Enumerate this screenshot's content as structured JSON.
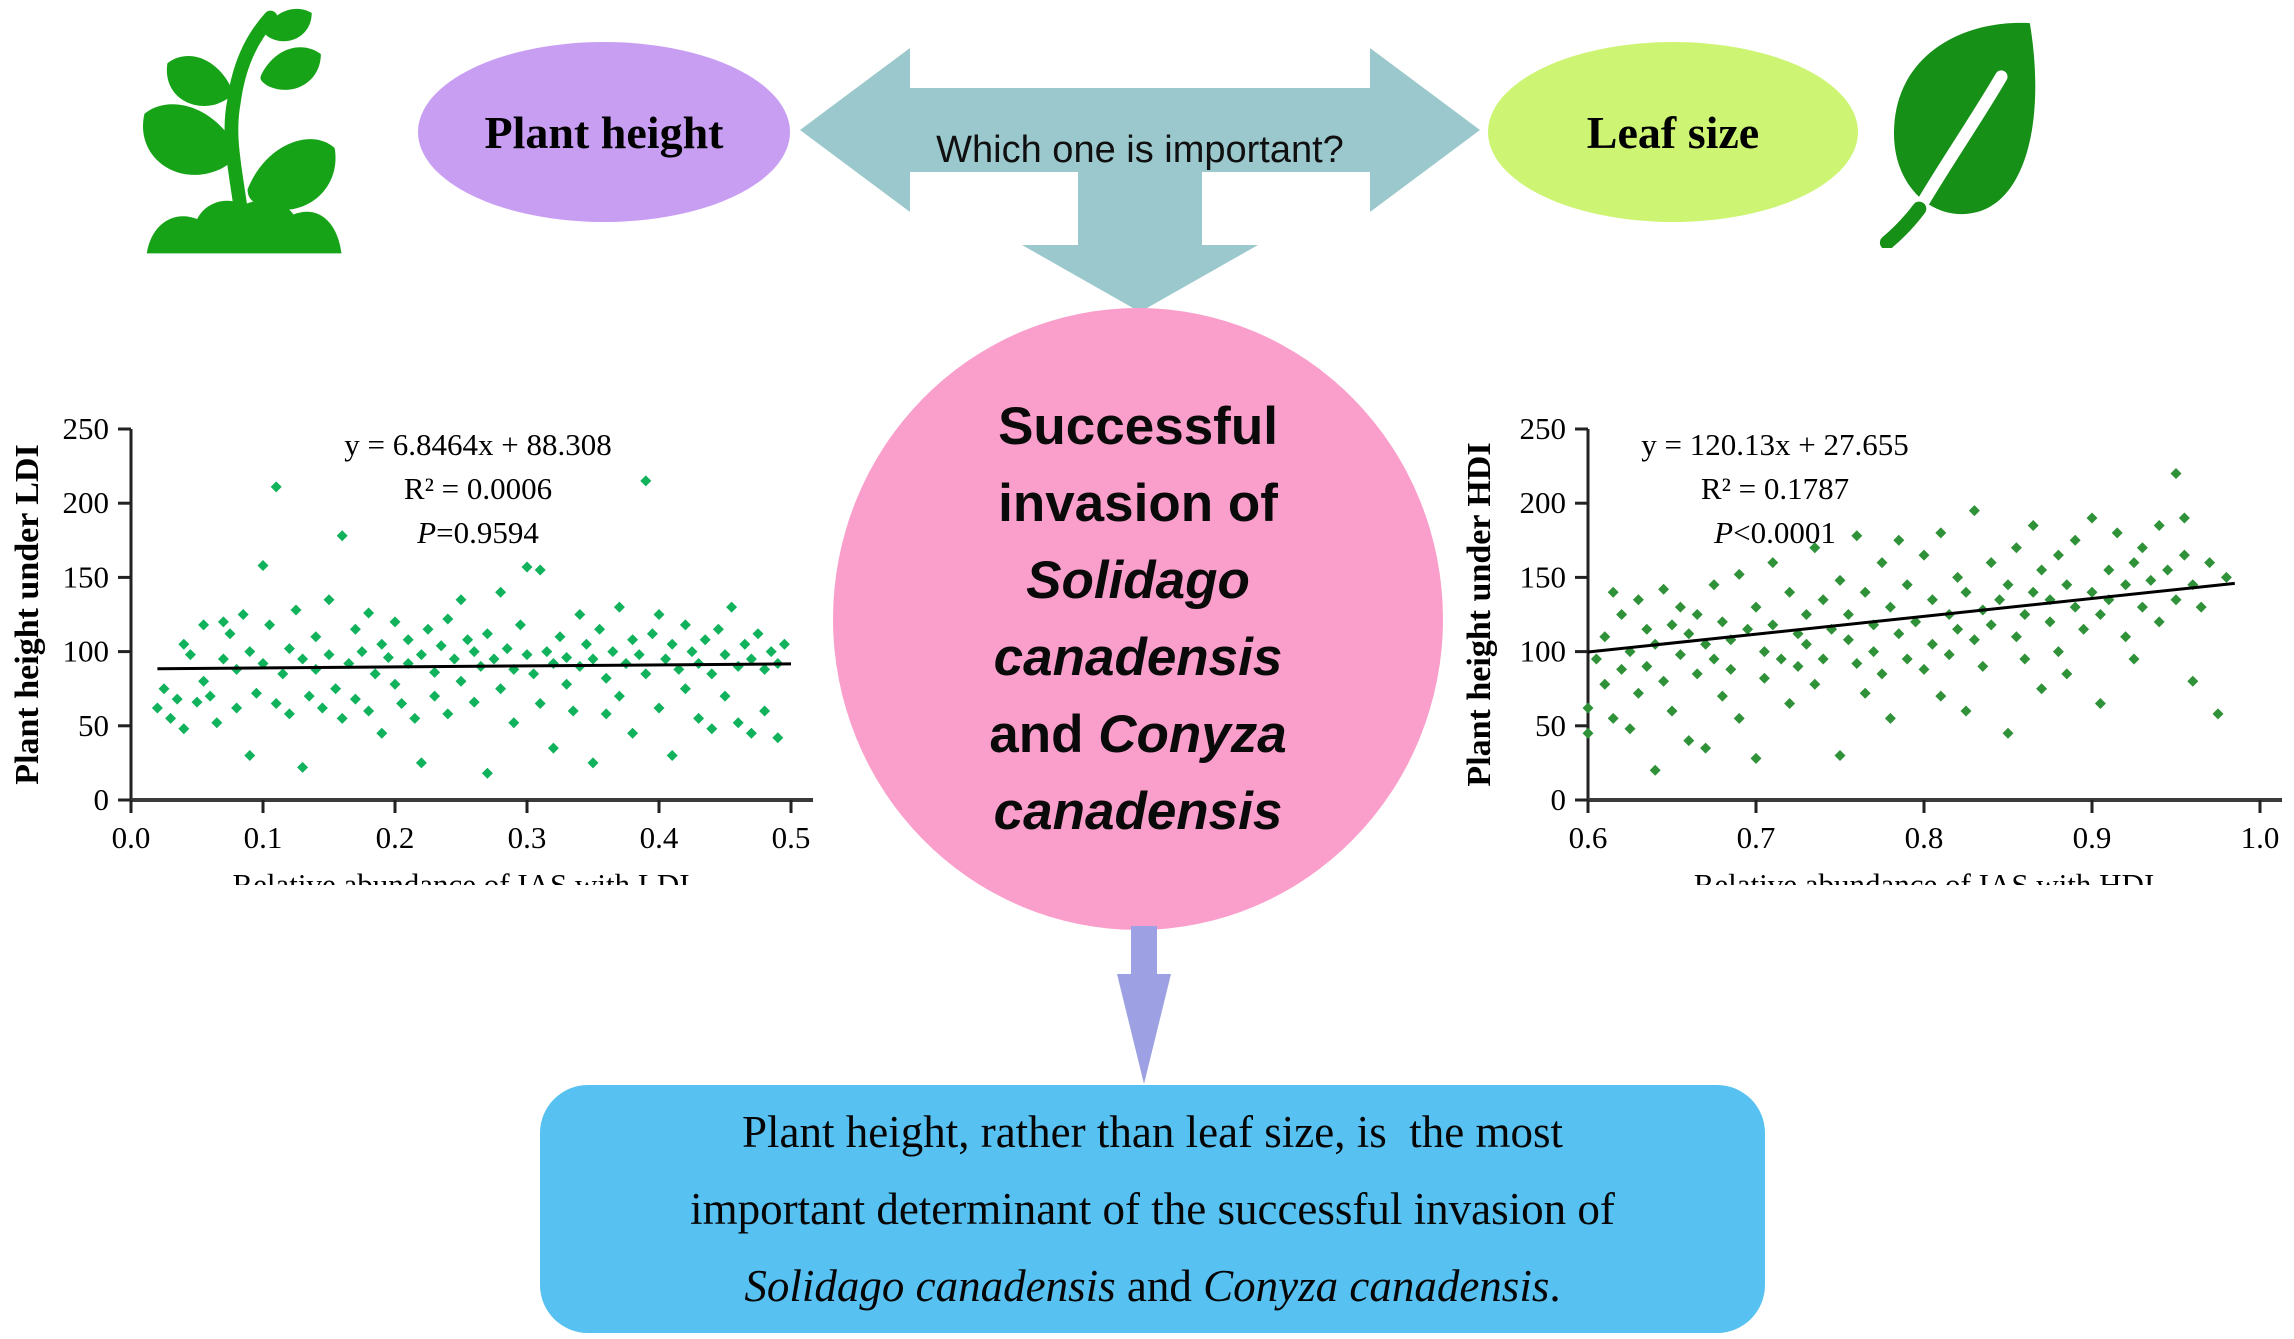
{
  "colors": {
    "icon_green": "#17a317",
    "leaf_green": "#169016",
    "purple_ellipse": "#c89ef3",
    "yellowgreen_ellipse": "#cdf573",
    "teal_arrow": "#9bc8cd",
    "pink_circle": "#fa9fcb",
    "lavender_arrow": "#9da1e3",
    "blue_box": "#57c1f1",
    "marker_ldi": "#10b25c",
    "marker_hdi": "#2f9138"
  },
  "top": {
    "plant_height": "Plant height",
    "leaf_size": "Leaf size",
    "question": "Which one is important?"
  },
  "circle": {
    "lines": [
      [
        {
          "t": "Successful",
          "i": false
        }
      ],
      [
        {
          "t": "invasion of",
          "i": false
        }
      ],
      [
        {
          "t": "Solidago",
          "i": true
        }
      ],
      [
        {
          "t": "canadensis",
          "i": true
        }
      ],
      [
        {
          "t": "and ",
          "i": false
        },
        {
          "t": "Conyza",
          "i": true
        }
      ],
      [
        {
          "t": "canadensis",
          "i": true
        }
      ]
    ]
  },
  "box": {
    "lines": [
      [
        {
          "t": "Plant height, rather than leaf size, is  the most",
          "i": false
        }
      ],
      [
        {
          "t": "important determinant of the successful invasion of",
          "i": false
        }
      ],
      [
        {
          "t": "Solidago canadensis",
          "i": true
        },
        {
          "t": " and ",
          "i": false
        },
        {
          "t": "Conyza canadensis",
          "i": true
        },
        {
          "t": ".",
          "i": false
        }
      ]
    ]
  },
  "chart_data": [
    {
      "type": "scatter",
      "ylabel": "Plant height under LDI",
      "xlabel": "Relative abundance of IAS with LDI",
      "xlim": [
        0.0,
        0.5
      ],
      "ylim": [
        0,
        250
      ],
      "xtick_labels": [
        "0.0",
        "0.1",
        "0.2",
        "0.3",
        "0.4",
        "0.5"
      ],
      "ytick_labels": [
        "0",
        "50",
        "100",
        "150",
        "200",
        "250"
      ],
      "equation": "y = 6.8464x + 88.308",
      "r2": "R² = 0.0006",
      "p_italic": "P",
      "p_rest": "=0.9594",
      "trend": {
        "slope": 6.8464,
        "intercept": 88.308,
        "x_start": 0.02,
        "x_end": 0.5
      },
      "marker_color": "#10b25c",
      "legend": null,
      "grid": false,
      "points": [
        [
          0.02,
          62
        ],
        [
          0.025,
          75
        ],
        [
          0.03,
          55
        ],
        [
          0.035,
          68
        ],
        [
          0.04,
          105
        ],
        [
          0.04,
          48
        ],
        [
          0.045,
          98
        ],
        [
          0.05,
          66
        ],
        [
          0.055,
          80
        ],
        [
          0.055,
          118
        ],
        [
          0.06,
          70
        ],
        [
          0.065,
          52
        ],
        [
          0.07,
          95
        ],
        [
          0.07,
          120
        ],
        [
          0.075,
          112
        ],
        [
          0.08,
          88
        ],
        [
          0.08,
          62
        ],
        [
          0.085,
          125
        ],
        [
          0.09,
          100
        ],
        [
          0.09,
          30
        ],
        [
          0.095,
          72
        ],
        [
          0.1,
          158
        ],
        [
          0.1,
          92
        ],
        [
          0.105,
          118
        ],
        [
          0.11,
          211
        ],
        [
          0.11,
          65
        ],
        [
          0.115,
          85
        ],
        [
          0.12,
          102
        ],
        [
          0.12,
          58
        ],
        [
          0.125,
          128
        ],
        [
          0.13,
          95
        ],
        [
          0.13,
          22
        ],
        [
          0.135,
          70
        ],
        [
          0.14,
          110
        ],
        [
          0.14,
          88
        ],
        [
          0.145,
          62
        ],
        [
          0.15,
          135
        ],
        [
          0.15,
          98
        ],
        [
          0.155,
          75
        ],
        [
          0.16,
          178
        ],
        [
          0.16,
          55
        ],
        [
          0.165,
          92
        ],
        [
          0.17,
          115
        ],
        [
          0.17,
          68
        ],
        [
          0.175,
          100
        ],
        [
          0.18,
          126
        ],
        [
          0.18,
          60
        ],
        [
          0.185,
          85
        ],
        [
          0.19,
          105
        ],
        [
          0.19,
          45
        ],
        [
          0.195,
          96
        ],
        [
          0.2,
          120
        ],
        [
          0.2,
          78
        ],
        [
          0.205,
          65
        ],
        [
          0.21,
          108
        ],
        [
          0.21,
          92
        ],
        [
          0.215,
          55
        ],
        [
          0.22,
          98
        ],
        [
          0.22,
          25
        ],
        [
          0.225,
          115
        ],
        [
          0.23,
          86
        ],
        [
          0.23,
          70
        ],
        [
          0.235,
          104
        ],
        [
          0.24,
          122
        ],
        [
          0.24,
          58
        ],
        [
          0.245,
          95
        ],
        [
          0.25,
          135
        ],
        [
          0.25,
          80
        ],
        [
          0.255,
          108
        ],
        [
          0.26,
          66
        ],
        [
          0.26,
          100
        ],
        [
          0.265,
          90
        ],
        [
          0.27,
          18
        ],
        [
          0.27,
          112
        ],
        [
          0.275,
          95
        ],
        [
          0.28,
          140
        ],
        [
          0.28,
          75
        ],
        [
          0.285,
          102
        ],
        [
          0.29,
          88
        ],
        [
          0.29,
          52
        ],
        [
          0.295,
          118
        ],
        [
          0.3,
          157
        ],
        [
          0.3,
          98
        ],
        [
          0.305,
          85
        ],
        [
          0.31,
          155
        ],
        [
          0.31,
          65
        ],
        [
          0.315,
          100
        ],
        [
          0.32,
          92
        ],
        [
          0.32,
          35
        ],
        [
          0.325,
          110
        ],
        [
          0.33,
          78
        ],
        [
          0.33,
          96
        ],
        [
          0.335,
          60
        ],
        [
          0.34,
          125
        ],
        [
          0.34,
          90
        ],
        [
          0.345,
          105
        ],
        [
          0.35,
          25
        ],
        [
          0.35,
          95
        ],
        [
          0.355,
          115
        ],
        [
          0.36,
          82
        ],
        [
          0.36,
          58
        ],
        [
          0.365,
          100
        ],
        [
          0.37,
          130
        ],
        [
          0.37,
          70
        ],
        [
          0.375,
          92
        ],
        [
          0.38,
          108
        ],
        [
          0.38,
          45
        ],
        [
          0.385,
          98
        ],
        [
          0.39,
          215
        ],
        [
          0.39,
          85
        ],
        [
          0.395,
          112
        ],
        [
          0.4,
          125
        ],
        [
          0.4,
          62
        ],
        [
          0.405,
          95
        ],
        [
          0.41,
          105
        ],
        [
          0.41,
          30
        ],
        [
          0.415,
          88
        ],
        [
          0.42,
          118
        ],
        [
          0.42,
          75
        ],
        [
          0.425,
          100
        ],
        [
          0.43,
          55
        ],
        [
          0.43,
          92
        ],
        [
          0.435,
          108
        ],
        [
          0.44,
          85
        ],
        [
          0.44,
          48
        ],
        [
          0.445,
          115
        ],
        [
          0.45,
          98
        ],
        [
          0.45,
          70
        ],
        [
          0.455,
          130
        ],
        [
          0.46,
          90
        ],
        [
          0.46,
          52
        ],
        [
          0.465,
          105
        ],
        [
          0.47,
          95
        ],
        [
          0.47,
          45
        ],
        [
          0.475,
          112
        ],
        [
          0.48,
          88
        ],
        [
          0.48,
          60
        ],
        [
          0.485,
          100
        ],
        [
          0.49,
          92
        ],
        [
          0.49,
          42
        ],
        [
          0.495,
          105
        ]
      ]
    },
    {
      "type": "scatter",
      "ylabel": "Plant height under HDI",
      "xlabel": "Relative abundance of IAS with HDI",
      "xlim": [
        0.6,
        1.0
      ],
      "ylim": [
        0,
        250
      ],
      "xtick_labels": [
        "0.6",
        "0.7",
        "0.8",
        "0.9",
        "1.0"
      ],
      "ytick_labels": [
        "0",
        "50",
        "100",
        "150",
        "200",
        "250"
      ],
      "equation": "y = 120.13x + 27.655",
      "r2": "R² = 0.1787",
      "p_italic": "P",
      "p_rest": "<0.0001",
      "trend": {
        "slope": 120.13,
        "intercept": 27.655,
        "x_start": 0.6,
        "x_end": 0.985
      },
      "marker_color": "#2f9138",
      "legend": null,
      "grid": false,
      "points": [
        [
          0.6,
          45
        ],
        [
          0.6,
          62
        ],
        [
          0.605,
          95
        ],
        [
          0.61,
          110
        ],
        [
          0.61,
          78
        ],
        [
          0.615,
          140
        ],
        [
          0.615,
          55
        ],
        [
          0.62,
          125
        ],
        [
          0.62,
          88
        ],
        [
          0.625,
          100
        ],
        [
          0.625,
          48
        ],
        [
          0.63,
          135
        ],
        [
          0.63,
          72
        ],
        [
          0.635,
          115
        ],
        [
          0.635,
          90
        ],
        [
          0.64,
          20
        ],
        [
          0.64,
          105
        ],
        [
          0.645,
          142
        ],
        [
          0.645,
          80
        ],
        [
          0.65,
          118
        ],
        [
          0.65,
          60
        ],
        [
          0.655,
          98
        ],
        [
          0.655,
          130
        ],
        [
          0.66,
          40
        ],
        [
          0.66,
          112
        ],
        [
          0.665,
          85
        ],
        [
          0.665,
          125
        ],
        [
          0.67,
          105
        ],
        [
          0.67,
          35
        ],
        [
          0.675,
          145
        ],
        [
          0.675,
          95
        ],
        [
          0.68,
          120
        ],
        [
          0.68,
          70
        ],
        [
          0.685,
          108
        ],
        [
          0.685,
          88
        ],
        [
          0.69,
          152
        ],
        [
          0.69,
          55
        ],
        [
          0.695,
          115
        ],
        [
          0.7,
          130
        ],
        [
          0.7,
          28
        ],
        [
          0.705,
          100
        ],
        [
          0.705,
          82
        ],
        [
          0.71,
          160
        ],
        [
          0.71,
          118
        ],
        [
          0.715,
          95
        ],
        [
          0.72,
          140
        ],
        [
          0.72,
          65
        ],
        [
          0.725,
          112
        ],
        [
          0.725,
          90
        ],
        [
          0.73,
          125
        ],
        [
          0.73,
          105
        ],
        [
          0.735,
          170
        ],
        [
          0.735,
          78
        ],
        [
          0.74,
          135
        ],
        [
          0.74,
          95
        ],
        [
          0.745,
          115
        ],
        [
          0.75,
          30
        ],
        [
          0.75,
          148
        ],
        [
          0.755,
          108
        ],
        [
          0.755,
          125
        ],
        [
          0.76,
          178
        ],
        [
          0.76,
          92
        ],
        [
          0.765,
          140
        ],
        [
          0.765,
          72
        ],
        [
          0.77,
          118
        ],
        [
          0.77,
          100
        ],
        [
          0.775,
          160
        ],
        [
          0.775,
          85
        ],
        [
          0.78,
          130
        ],
        [
          0.78,
          55
        ],
        [
          0.785,
          112
        ],
        [
          0.785,
          175
        ],
        [
          0.79,
          95
        ],
        [
          0.79,
          145
        ],
        [
          0.795,
          120
        ],
        [
          0.8,
          165
        ],
        [
          0.8,
          88
        ],
        [
          0.805,
          135
        ],
        [
          0.805,
          105
        ],
        [
          0.81,
          180
        ],
        [
          0.81,
          70
        ],
        [
          0.815,
          125
        ],
        [
          0.815,
          98
        ],
        [
          0.82,
          150
        ],
        [
          0.82,
          115
        ],
        [
          0.825,
          60
        ],
        [
          0.825,
          140
        ],
        [
          0.83,
          195
        ],
        [
          0.83,
          108
        ],
        [
          0.835,
          128
        ],
        [
          0.835,
          90
        ],
        [
          0.84,
          160
        ],
        [
          0.84,
          118
        ],
        [
          0.845,
          135
        ],
        [
          0.85,
          45
        ],
        [
          0.85,
          145
        ],
        [
          0.855,
          110
        ],
        [
          0.855,
          170
        ],
        [
          0.86,
          125
        ],
        [
          0.86,
          95
        ],
        [
          0.865,
          185
        ],
        [
          0.865,
          140
        ],
        [
          0.87,
          75
        ],
        [
          0.87,
          155
        ],
        [
          0.875,
          120
        ],
        [
          0.875,
          135
        ],
        [
          0.88,
          165
        ],
        [
          0.88,
          100
        ],
        [
          0.885,
          145
        ],
        [
          0.885,
          85
        ],
        [
          0.89,
          130
        ],
        [
          0.89,
          175
        ],
        [
          0.895,
          115
        ],
        [
          0.9,
          190
        ],
        [
          0.9,
          140
        ],
        [
          0.905,
          125
        ],
        [
          0.905,
          65
        ],
        [
          0.91,
          155
        ],
        [
          0.91,
          135
        ],
        [
          0.915,
          180
        ],
        [
          0.92,
          110
        ],
        [
          0.92,
          145
        ],
        [
          0.925,
          160
        ],
        [
          0.925,
          95
        ],
        [
          0.93,
          170
        ],
        [
          0.93,
          130
        ],
        [
          0.935,
          148
        ],
        [
          0.94,
          185
        ],
        [
          0.94,
          120
        ],
        [
          0.945,
          155
        ],
        [
          0.95,
          220
        ],
        [
          0.95,
          135
        ],
        [
          0.955,
          190
        ],
        [
          0.955,
          165
        ],
        [
          0.96,
          80
        ],
        [
          0.96,
          145
        ],
        [
          0.965,
          130
        ],
        [
          0.97,
          160
        ],
        [
          0.975,
          58
        ],
        [
          0.98,
          150
        ]
      ]
    }
  ]
}
